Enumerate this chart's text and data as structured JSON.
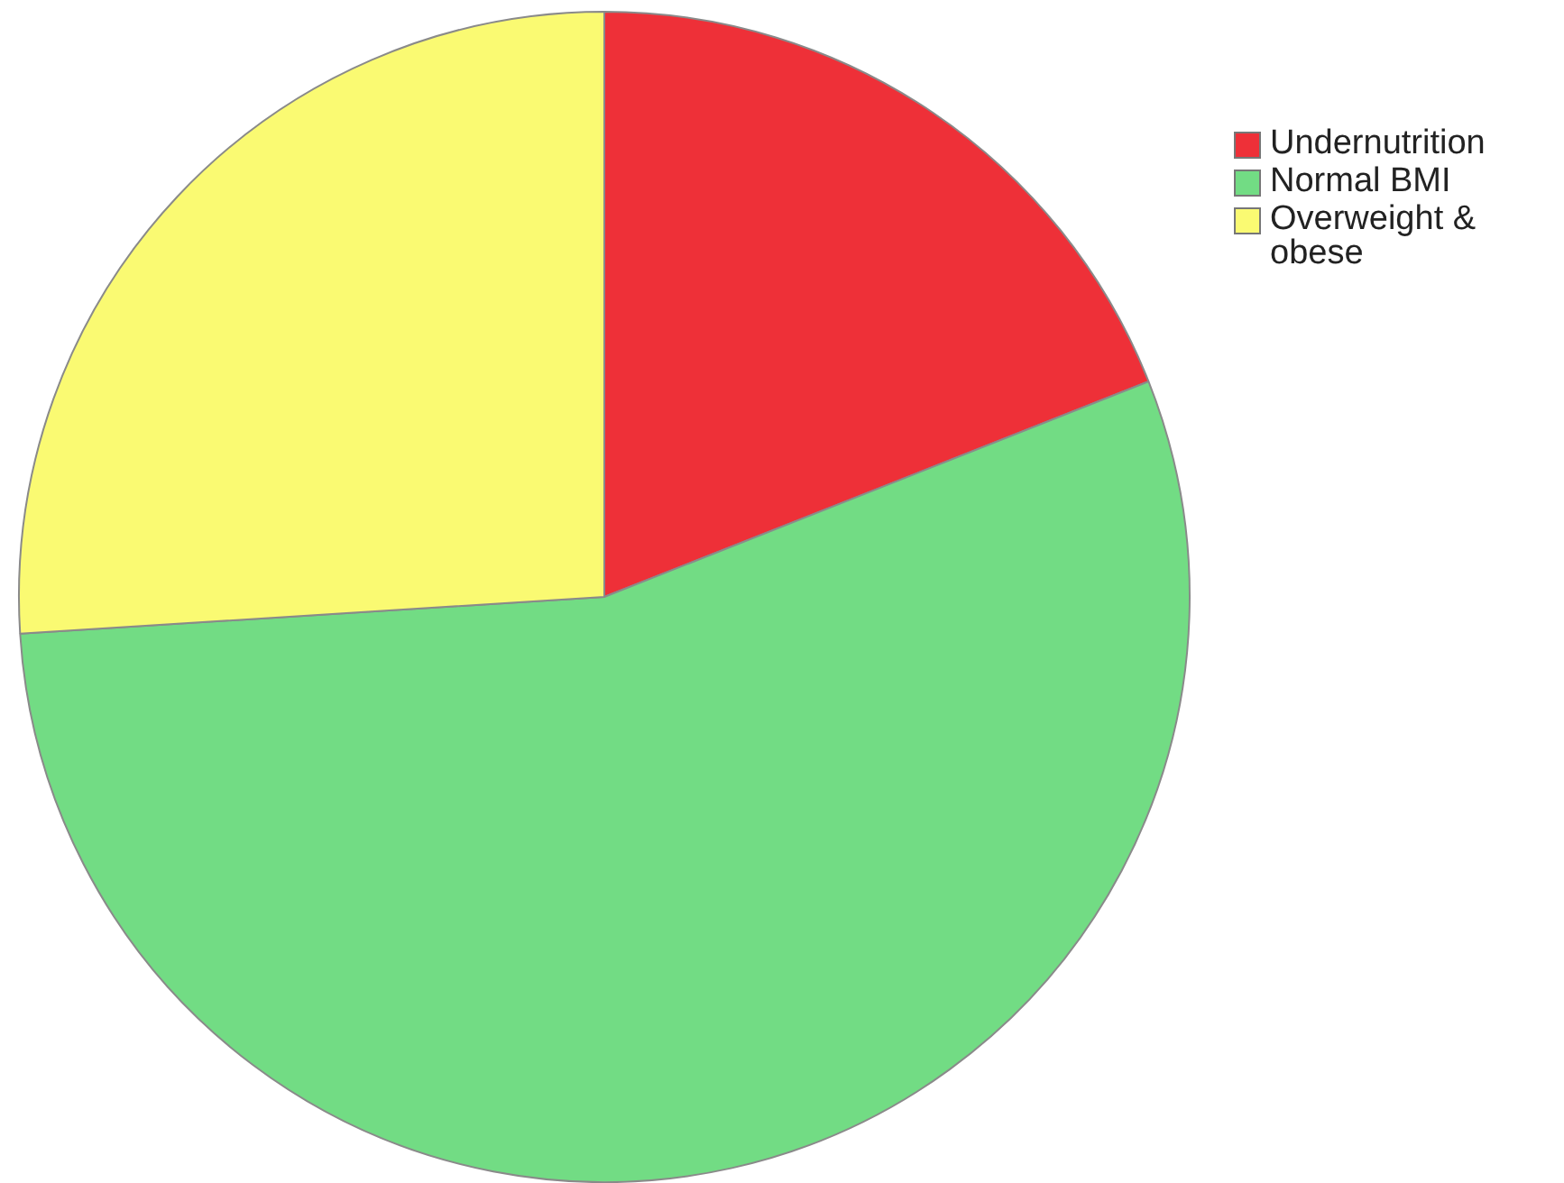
{
  "chart_data": {
    "type": "pie",
    "categories": [
      "Undernutrition",
      "Normal BMI",
      "Overweight & obese"
    ],
    "values": [
      19,
      55,
      26
    ],
    "colors": [
      "#ee3038",
      "#72dc84",
      "#fafa72"
    ],
    "legend": "top right"
  }
}
